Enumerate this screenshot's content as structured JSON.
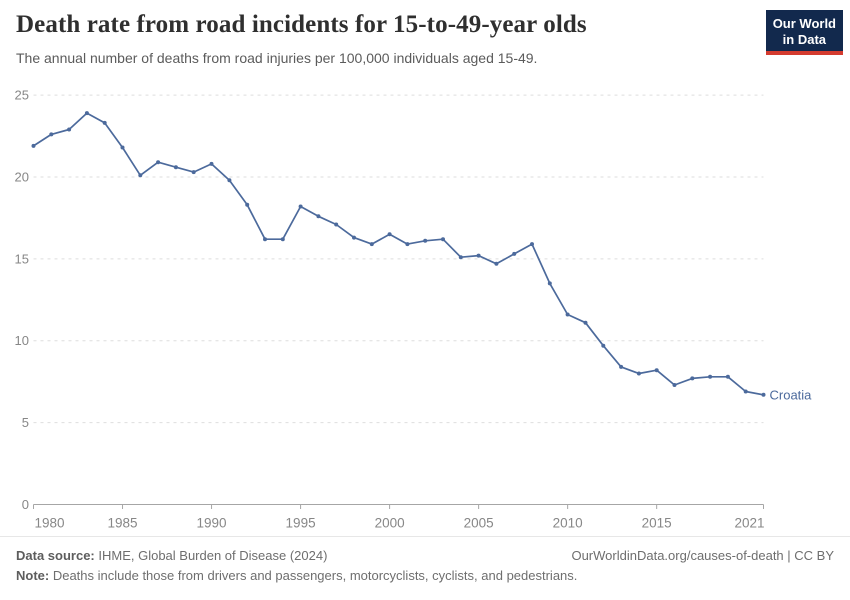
{
  "header": {
    "title": "Death rate from road incidents for 15-to-49-year olds",
    "subtitle": "The annual number of deaths from road injuries per 100,000 individuals aged 15-49.",
    "logo": {
      "line1": "Our World",
      "line2": "in Data"
    }
  },
  "chart_data": {
    "type": "line",
    "title": "Death rate from road incidents for 15-to-49-year olds",
    "xlabel": "",
    "ylabel": "",
    "xlim": [
      1980,
      2021
    ],
    "ylim": [
      0,
      25
    ],
    "x_ticks": [
      1980,
      1985,
      1990,
      1995,
      2000,
      2005,
      2010,
      2015,
      2021
    ],
    "y_ticks": [
      0,
      5,
      10,
      15,
      20,
      25
    ],
    "grid": "horizontal-dashed",
    "legend_position": "end-of-line-label",
    "series": [
      {
        "name": "Croatia",
        "color": "#4C6A9C",
        "x": [
          1980,
          1981,
          1982,
          1983,
          1984,
          1985,
          1986,
          1987,
          1988,
          1989,
          1990,
          1991,
          1992,
          1993,
          1994,
          1995,
          1996,
          1997,
          1998,
          1999,
          2000,
          2001,
          2002,
          2003,
          2004,
          2005,
          2006,
          2007,
          2008,
          2009,
          2010,
          2011,
          2012,
          2013,
          2014,
          2015,
          2016,
          2017,
          2018,
          2019,
          2020,
          2021
        ],
        "values": [
          21.9,
          22.6,
          22.9,
          23.9,
          23.3,
          21.8,
          20.1,
          20.9,
          20.6,
          20.3,
          20.8,
          19.8,
          18.3,
          16.2,
          16.2,
          18.2,
          17.6,
          17.1,
          16.3,
          15.9,
          16.5,
          15.9,
          16.1,
          16.2,
          15.1,
          15.2,
          14.7,
          15.3,
          15.9,
          13.5,
          11.6,
          11.1,
          9.7,
          8.4,
          8.0,
          8.2,
          7.3,
          7.7,
          7.8,
          7.8,
          6.9,
          6.7
        ]
      }
    ]
  },
  "footer": {
    "datasource_label": "Data source:",
    "datasource_value": " IHME, Global Burden of Disease (2024)",
    "link": "OurWorldinData.org/causes-of-death | CC BY",
    "note_label": "Note:",
    "note_value": " Deaths include those from drivers and passengers, motorcyclists, cyclists, and pedestrians."
  },
  "colors": {
    "line": "#4C6A9C",
    "end_label": "#4C6A9C",
    "logo_background": "#12294d",
    "logo_stripe": "#d43b2f"
  }
}
